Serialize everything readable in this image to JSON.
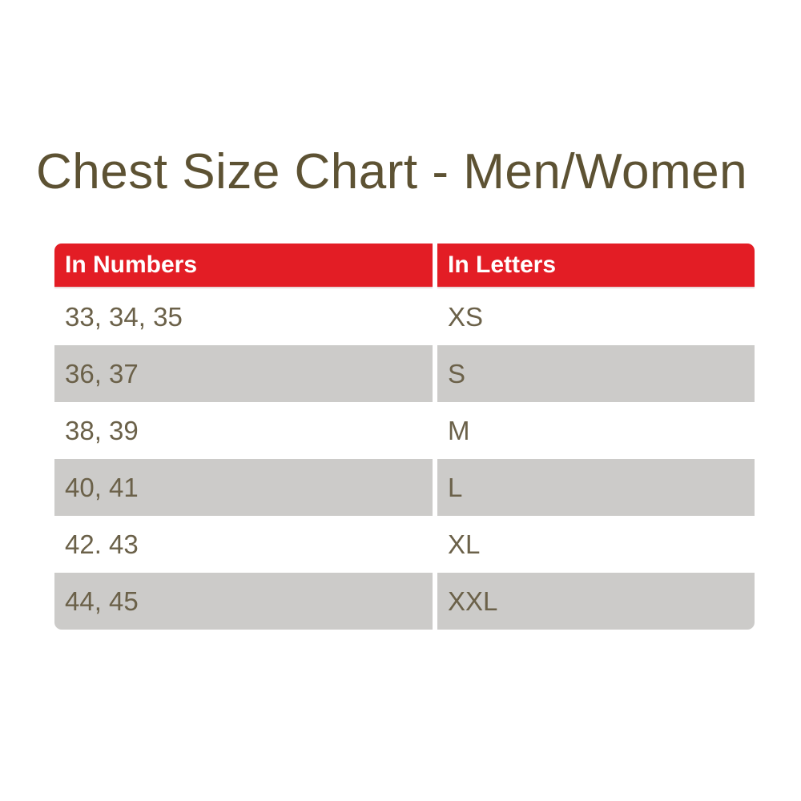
{
  "title": {
    "text": "Chest Size Chart - Men/Women",
    "color": "#5d5233"
  },
  "table": {
    "header": {
      "background": "#e31d25",
      "text_color": "#ffffff",
      "columns": [
        "In Numbers",
        "In Letters"
      ]
    },
    "row_alt_background": "#cccbc9",
    "row_background": "#ffffff",
    "text_color": "#6b6149",
    "rows": [
      {
        "in_numbers": "33, 34, 35",
        "in_letters": "XS"
      },
      {
        "in_numbers": "36, 37",
        "in_letters": "S"
      },
      {
        "in_numbers": "38, 39",
        "in_letters": "M"
      },
      {
        "in_numbers": "40, 41",
        "in_letters": "L"
      },
      {
        "in_numbers": "42. 43",
        "in_letters": "XL"
      },
      {
        "in_numbers": "44, 45",
        "in_letters": "XXL"
      }
    ]
  },
  "chart_data": {
    "type": "table",
    "title": "Chest Size Chart - Men/Women",
    "columns": [
      "In Numbers",
      "In Letters"
    ],
    "rows": [
      [
        "33, 34, 35",
        "XS"
      ],
      [
        "36, 37",
        "S"
      ],
      [
        "38, 39",
        "M"
      ],
      [
        "40, 41",
        "L"
      ],
      [
        "42. 43",
        "XL"
      ],
      [
        "44, 45",
        "XXL"
      ]
    ]
  }
}
